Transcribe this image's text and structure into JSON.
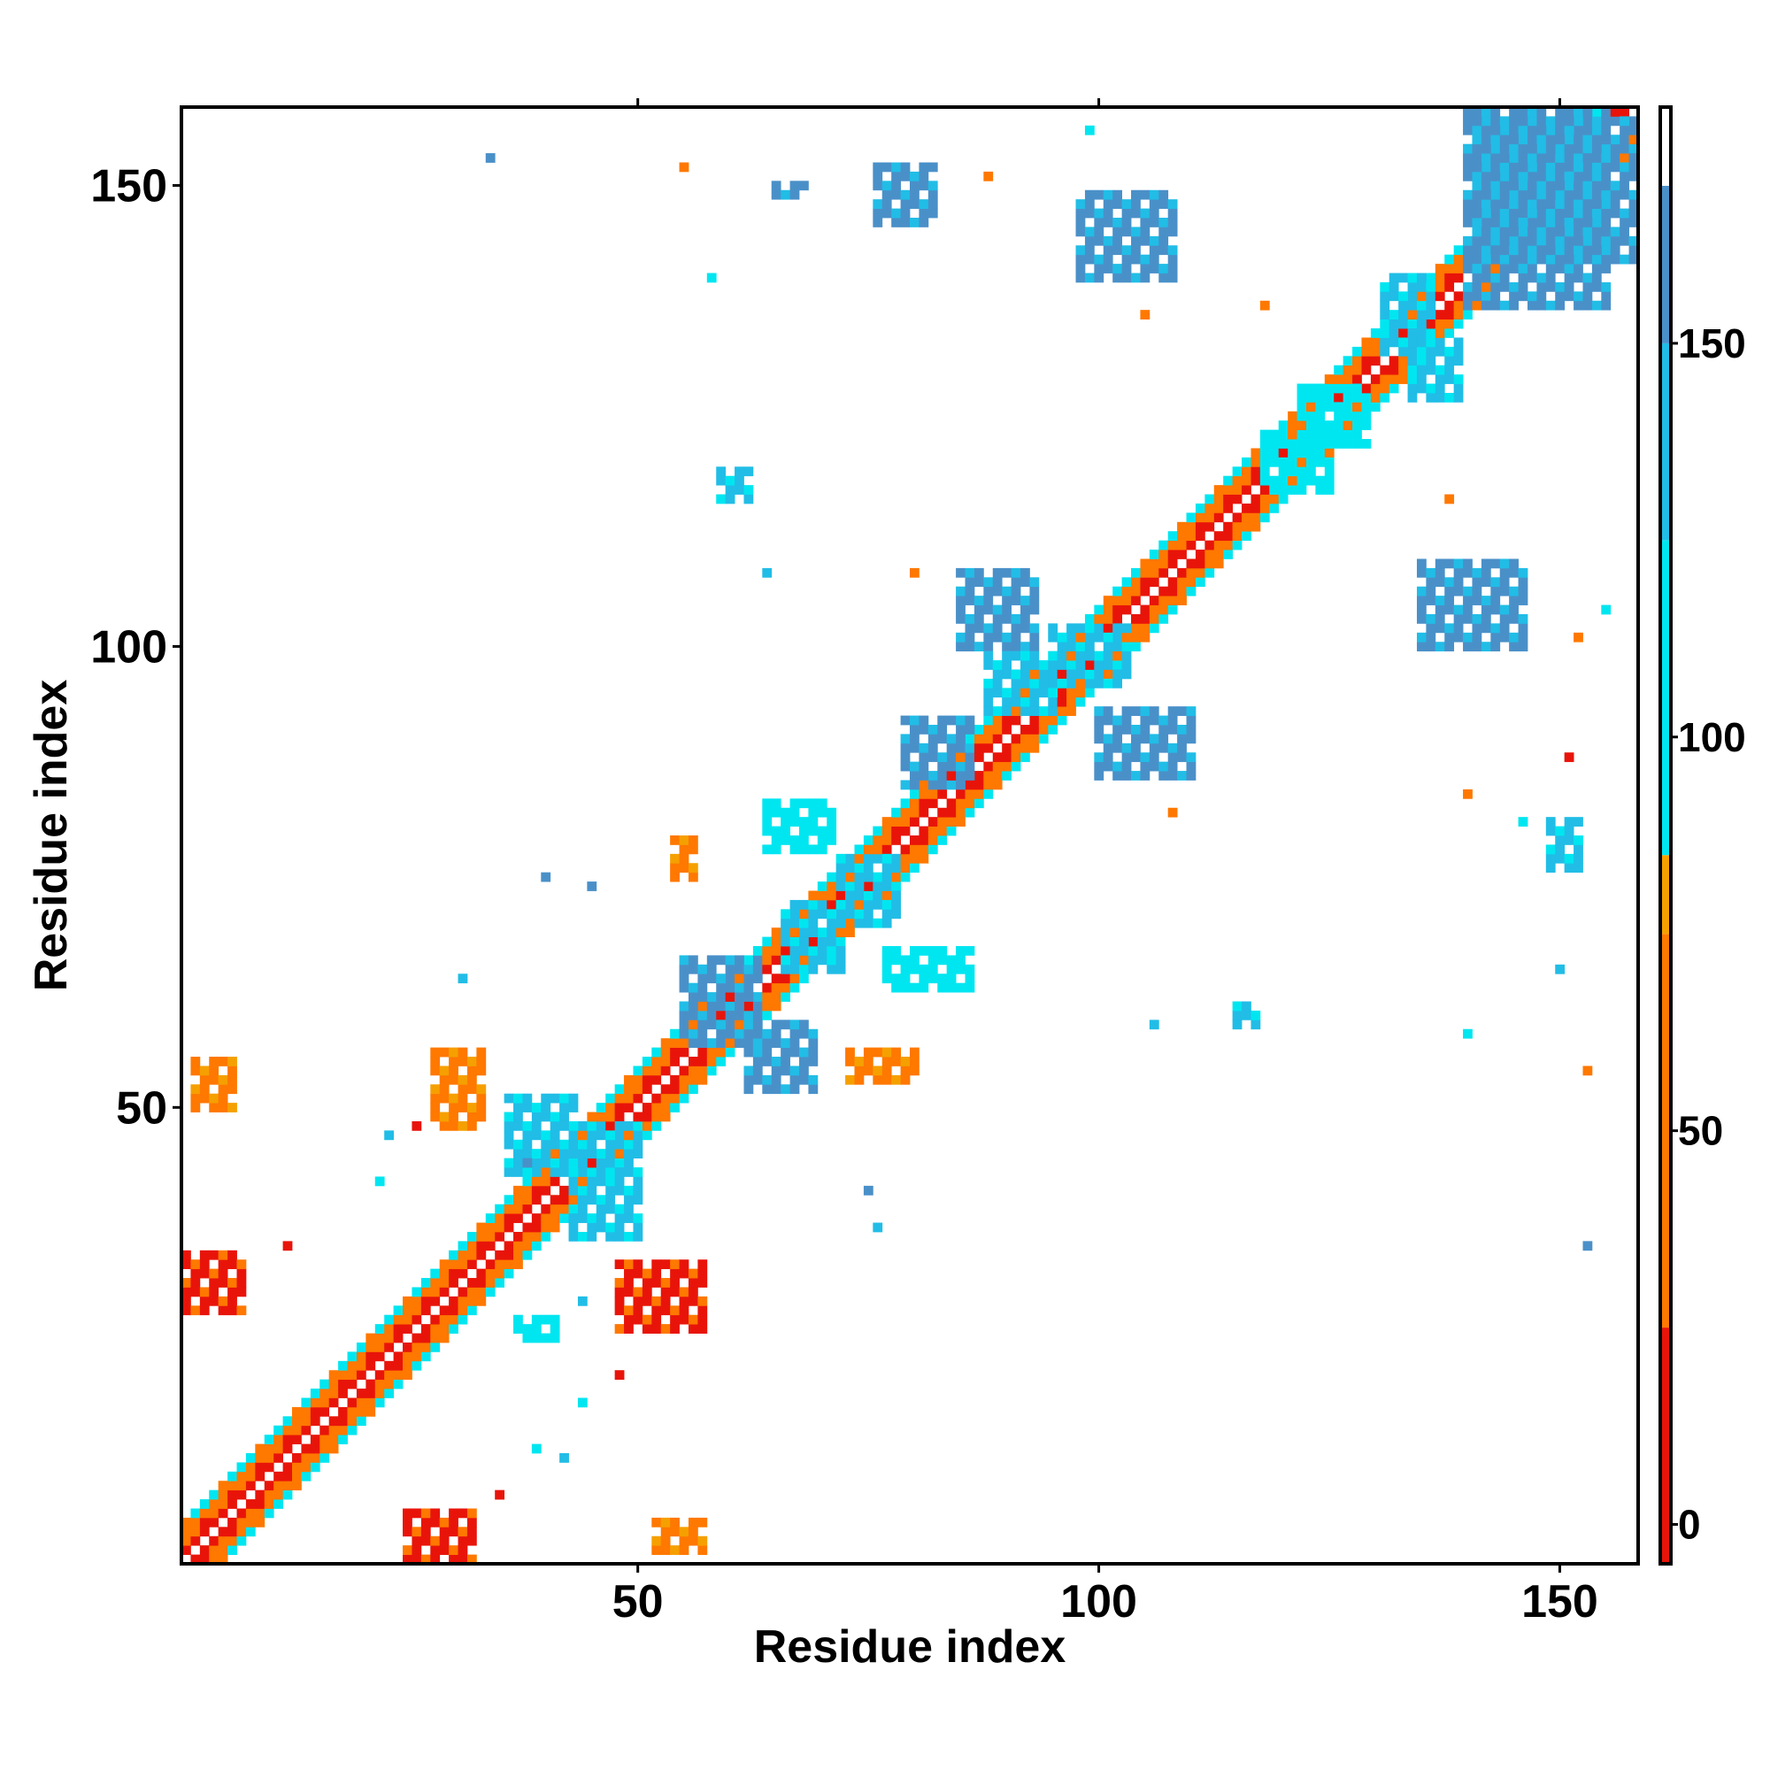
{
  "chart_data": {
    "type": "heatmap",
    "title": "",
    "xlabel": "Residue index",
    "ylabel": "Residue index",
    "xlim": [
      0.5,
      158.5
    ],
    "ylim": [
      0.5,
      158.5
    ],
    "x_ticks": [
      50,
      100,
      150
    ],
    "y_ticks": [
      50,
      100,
      150
    ],
    "colorbar": {
      "ticks": [
        0,
        50,
        100,
        150
      ],
      "range": [
        -5,
        180
      ],
      "bands": [
        {
          "from": -5,
          "to": 25,
          "color": "#e8140a"
        },
        {
          "from": 25,
          "to": 75,
          "color": "#ff7800"
        },
        {
          "from": 75,
          "to": 85,
          "color": "#f5a000"
        },
        {
          "from": 85,
          "to": 125,
          "color": "#00e6f0"
        },
        {
          "from": 125,
          "to": 150,
          "color": "#21bde6"
        },
        {
          "from": 150,
          "to": 170,
          "color": "#4a90c8"
        },
        {
          "from": 170,
          "to": 180,
          "color": "#ffffff"
        }
      ]
    },
    "legend": "colorbar-right",
    "grid": false,
    "description_of_value": "cell value at (residue i, residue j); blank cells have no value",
    "diagonal_band": {
      "offsets": [
        -4,
        -3,
        -2,
        -1,
        1,
        2,
        3,
        4
      ],
      "offset_values": {
        "1": 5,
        "2": 40,
        "3": 60,
        "4": 110
      }
    },
    "clusters": [
      {
        "x": [
          1,
          7
        ],
        "y": [
          28,
          34
        ],
        "value": 10
      },
      {
        "x": [
          2,
          6
        ],
        "y": [
          50,
          55
        ],
        "value": 60
      },
      {
        "x": [
          25,
          32
        ],
        "y": [
          1,
          6
        ],
        "value": 10
      },
      {
        "x": [
          28,
          33
        ],
        "y": [
          48,
          56
        ],
        "value": 60
      },
      {
        "x": [
          48,
          57
        ],
        "y": [
          26,
          33
        ],
        "value": 10
      },
      {
        "x": [
          52,
          57
        ],
        "y": [
          2,
          5
        ],
        "value": 60
      },
      {
        "x": [
          43,
          50
        ],
        "y": [
          36,
          48
        ],
        "value": 135
      },
      {
        "x": [
          36,
          43
        ],
        "y": [
          43,
          51
        ],
        "value": 135
      },
      {
        "x": [
          55,
          63
        ],
        "y": [
          57,
          66
        ],
        "value": 160
      },
      {
        "x": [
          62,
          69
        ],
        "y": [
          52,
          59
        ],
        "value": 160
      },
      {
        "x": [
          66,
          72
        ],
        "y": [
          65,
          72
        ],
        "value": 135
      },
      {
        "x": [
          72,
          78
        ],
        "y": [
          70,
          77
        ],
        "value": 135
      },
      {
        "x": [
          79,
          86
        ],
        "y": [
          85,
          92
        ],
        "value": 160
      },
      {
        "x": [
          85,
          93
        ],
        "y": [
          100,
          108
        ],
        "value": 160
      },
      {
        "x": [
          88,
          95
        ],
        "y": [
          93,
          99
        ],
        "value": 135
      },
      {
        "x": [
          95,
          103
        ],
        "y": [
          96,
          102
        ],
        "value": 135
      },
      {
        "x": [
          100,
          110
        ],
        "y": [
          86,
          93
        ],
        "value": 160
      },
      {
        "x": [
          98,
          108
        ],
        "y": [
          140,
          149
        ],
        "value": 160
      },
      {
        "x": [
          76,
          82
        ],
        "y": [
          146,
          152
        ],
        "value": 160
      },
      {
        "x": [
          64,
          71
        ],
        "y": [
          78,
          83
        ],
        "value": 110
      },
      {
        "x": [
          54,
          56
        ],
        "y": [
          75,
          79
        ],
        "value": 60
      },
      {
        "x": [
          77,
          86
        ],
        "y": [
          63,
          67
        ],
        "value": 110
      },
      {
        "x": [
          73,
          80
        ],
        "y": [
          53,
          56
        ],
        "value": 60
      },
      {
        "x": [
          135,
          146
        ],
        "y": [
          100,
          109
        ],
        "value": 160
      },
      {
        "x": [
          149,
          152
        ],
        "y": [
          76,
          81
        ],
        "value": 135
      },
      {
        "x": [
          140,
          155
        ],
        "y": [
          137,
          158
        ],
        "value": 160
      },
      {
        "x": [
          141,
          158
        ],
        "y": [
          142,
          157
        ],
        "value": 160
      },
      {
        "x": [
          131,
          136
        ],
        "y": [
          132,
          140
        ],
        "value": 135
      },
      {
        "x": [
          134,
          139
        ],
        "y": [
          127,
          133
        ],
        "value": 135
      },
      {
        "x": [
          118,
          125
        ],
        "y": [
          117,
          123
        ],
        "value": 110
      },
      {
        "x": [
          122,
          129
        ],
        "y": [
          122,
          128
        ],
        "value": 110
      },
      {
        "x": [
          59,
          62
        ],
        "y": [
          116,
          119
        ],
        "value": 135
      },
      {
        "x": [
          65,
          68
        ],
        "y": [
          149,
          150
        ],
        "value": 150
      },
      {
        "x": [
          115,
          117
        ],
        "y": [
          59,
          61
        ],
        "value": 135
      },
      {
        "x": [
          37,
          41
        ],
        "y": [
          25,
          27
        ],
        "value": 110
      }
    ],
    "scatter_cells": [
      {
        "x": 34,
        "y": 153,
        "value": 160
      },
      {
        "x": 55,
        "y": 152,
        "value": 60
      },
      {
        "x": 58,
        "y": 140,
        "value": 110
      },
      {
        "x": 88,
        "y": 151,
        "value": 40
      },
      {
        "x": 99,
        "y": 156,
        "value": 110
      },
      {
        "x": 105,
        "y": 136,
        "value": 40
      },
      {
        "x": 118,
        "y": 137,
        "value": 40
      },
      {
        "x": 64,
        "y": 108,
        "value": 135
      },
      {
        "x": 80,
        "y": 108,
        "value": 40
      },
      {
        "x": 93,
        "y": 90,
        "value": 60
      },
      {
        "x": 108,
        "y": 82,
        "value": 40
      },
      {
        "x": 106,
        "y": 59,
        "value": 135
      },
      {
        "x": 40,
        "y": 75,
        "value": 160
      },
      {
        "x": 45,
        "y": 74,
        "value": 160
      },
      {
        "x": 31,
        "y": 64,
        "value": 135
      },
      {
        "x": 23,
        "y": 47,
        "value": 135
      },
      {
        "x": 22,
        "y": 42,
        "value": 110
      },
      {
        "x": 26,
        "y": 48,
        "value": 10
      },
      {
        "x": 38,
        "y": 44,
        "value": 160
      },
      {
        "x": 12,
        "y": 35,
        "value": 10
      },
      {
        "x": 44,
        "y": 18,
        "value": 110
      },
      {
        "x": 42,
        "y": 12,
        "value": 135
      },
      {
        "x": 39,
        "y": 13,
        "value": 110
      },
      {
        "x": 35,
        "y": 8,
        "value": 10
      },
      {
        "x": 44,
        "y": 29,
        "value": 135
      },
      {
        "x": 48,
        "y": 21,
        "value": 10
      },
      {
        "x": 75,
        "y": 41,
        "value": 160
      },
      {
        "x": 76,
        "y": 37,
        "value": 135
      },
      {
        "x": 138,
        "y": 116,
        "value": 60
      },
      {
        "x": 140,
        "y": 84,
        "value": 40
      },
      {
        "x": 151,
        "y": 88,
        "value": 10
      },
      {
        "x": 152,
        "y": 101,
        "value": 40
      },
      {
        "x": 153,
        "y": 54,
        "value": 60
      },
      {
        "x": 150,
        "y": 65,
        "value": 135
      },
      {
        "x": 140,
        "y": 58,
        "value": 110
      },
      {
        "x": 153,
        "y": 35,
        "value": 160
      },
      {
        "x": 146,
        "y": 81,
        "value": 110
      },
      {
        "x": 155,
        "y": 104,
        "value": 110
      }
    ]
  }
}
